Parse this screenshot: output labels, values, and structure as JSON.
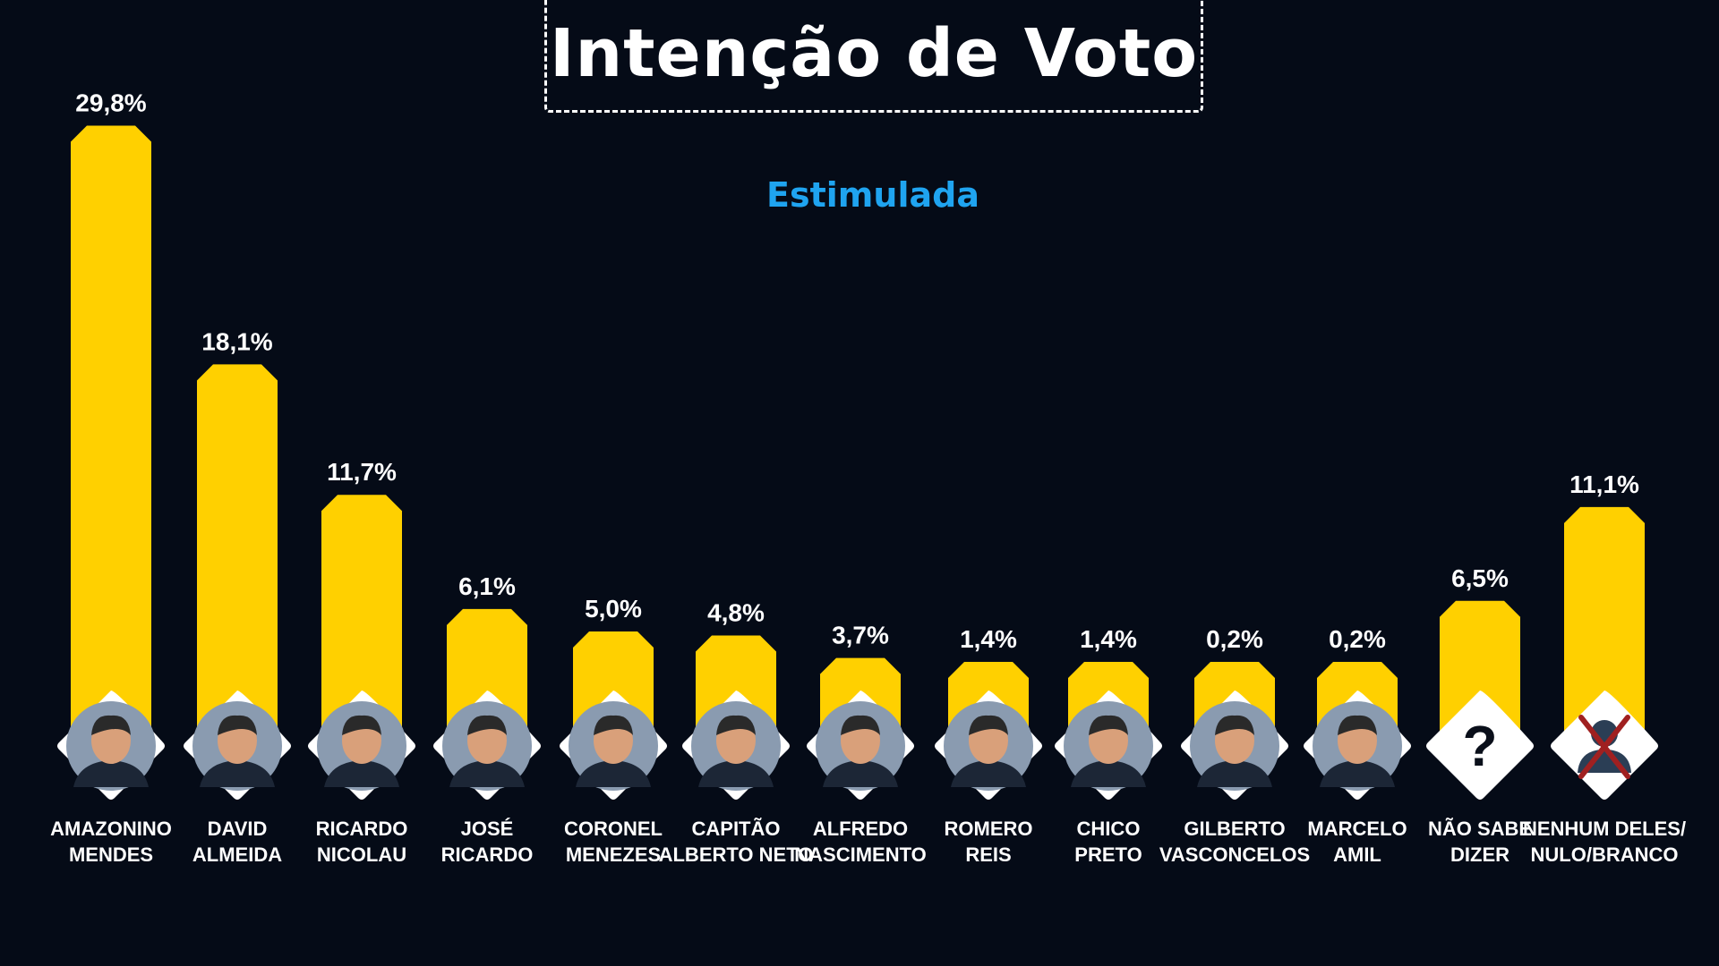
{
  "title": "Intenção de Voto",
  "subtitle": "Estimulada",
  "colors": {
    "background": "#050b17",
    "bar": "#ffd000",
    "subtitle": "#1fa4f0",
    "text": "#ffffff",
    "avatar_bg": "#ffffff",
    "cross": "#a02020"
  },
  "chart_data": {
    "type": "bar",
    "title": "Intenção de Voto",
    "subtitle": "Estimulada",
    "unit": "%",
    "categories": [
      [
        "AMAZONINO",
        "MENDES"
      ],
      [
        "DAVID",
        "ALMEIDA"
      ],
      [
        "RICARDO",
        "NICOLAU"
      ],
      [
        "JOSÉ",
        "RICARDO"
      ],
      [
        "CORONEL",
        "MENEZES"
      ],
      [
        "CAPITÃO",
        "ALBERTO NETO"
      ],
      [
        "ALFREDO",
        "NASCIMENTO"
      ],
      [
        "ROMERO",
        "REIS"
      ],
      [
        "CHICO",
        "PRETO"
      ],
      [
        "GILBERTO",
        "VASCONCELOS"
      ],
      [
        "MARCELO",
        "AMIL"
      ],
      [
        "NÃO SABE",
        "DIZER"
      ],
      [
        "NENHUM DELES/",
        "NULO/BRANCO"
      ]
    ],
    "values": [
      29.8,
      18.1,
      11.7,
      6.1,
      5.0,
      4.8,
      3.7,
      1.4,
      1.4,
      0.2,
      0.2,
      6.5,
      11.1
    ],
    "value_labels": [
      "29,8%",
      "18,1%",
      "11,7%",
      "6,1%",
      "5,0%",
      "4,8%",
      "3,7%",
      "1,4%",
      "1,4%",
      "0,2%",
      "0,2%",
      "6,5%",
      "11,1%"
    ],
    "icons": [
      "person-photo",
      "person-photo",
      "person-photo",
      "person-photo",
      "person-photo",
      "person-photo",
      "person-photo",
      "person-photo",
      "person-photo",
      "person-photo",
      "person-photo",
      "question-mark-icon",
      "crossed-person-icon"
    ],
    "ylim": [
      0,
      30
    ],
    "grid": false,
    "legend": "none"
  }
}
